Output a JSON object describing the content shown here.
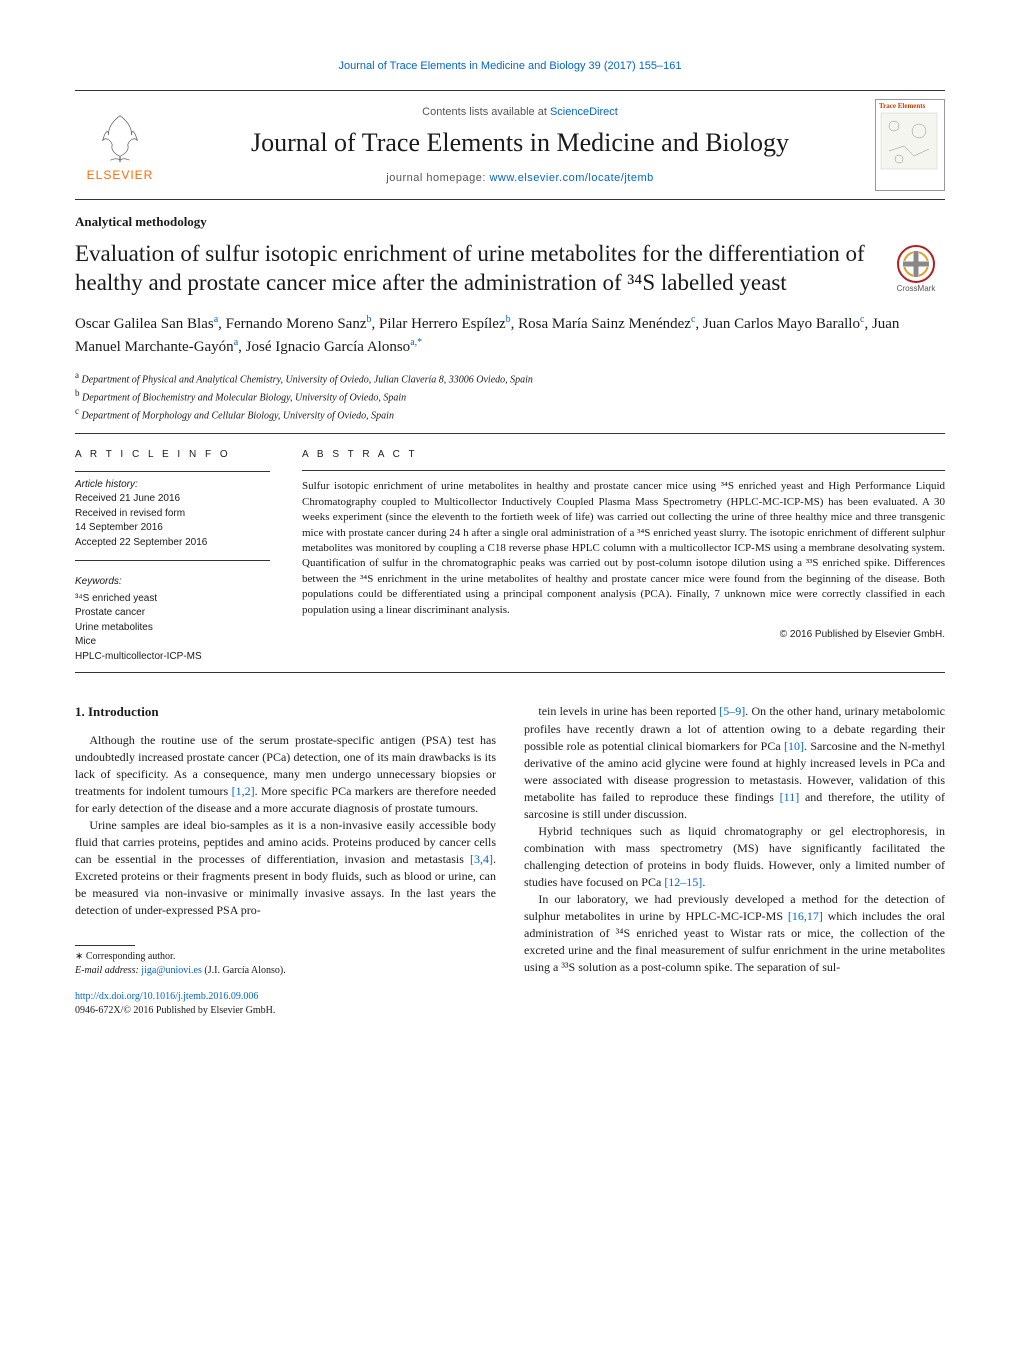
{
  "top_link": "Journal of Trace Elements in Medicine and Biology 39 (2017) 155–161",
  "header": {
    "sd_prefix": "Contents lists available at ",
    "sd_link": "ScienceDirect",
    "journal": "Journal of Trace Elements in Medicine and Biology",
    "home_prefix": "journal homepage: ",
    "home_link": "www.elsevier.com/locate/jtemb",
    "elsevier_word": "ELSEVIER",
    "cover_title": "Trace Elements"
  },
  "section_tag": "Analytical methodology",
  "title": "Evaluation of sulfur isotopic enrichment of urine metabolites for the differentiation of healthy and prostate cancer mice after the administration of ³⁴S labelled yeast",
  "crossmark": "CrossMark",
  "authors_html": "Oscar Galilea San Blas|a|, Fernando Moreno Sanz|b|, Pilar Herrero Espílez|b|, Rosa María Sainz Menéndez|c|, Juan Carlos Mayo Barallo|c|, Juan Manuel Marchante-Gayón|a|, José Ignacio García Alonso|a,*|",
  "affiliations": [
    {
      "sup": "a",
      "text": "Department of Physical and Analytical Chemistry, University of Oviedo, Julian Clavería 8, 33006 Oviedo, Spain"
    },
    {
      "sup": "b",
      "text": "Department of Biochemistry and Molecular Biology, University of Oviedo, Spain"
    },
    {
      "sup": "c",
      "text": "Department of Morphology and Cellular Biology, University of Oviedo, Spain"
    }
  ],
  "info": {
    "heading": "A R T I C L E   I N F O",
    "history_label": "Article history:",
    "received": "Received 21 June 2016",
    "revised1": "Received in revised form",
    "revised2": "14 September 2016",
    "accepted": "Accepted 22 September 2016",
    "kw_head": "Keywords:",
    "keywords": [
      "³⁴S enriched yeast",
      "Prostate cancer",
      "Urine metabolites",
      "Mice",
      "HPLC-multicollector-ICP-MS"
    ]
  },
  "abstract": {
    "heading": "A B S T R A C T",
    "text": "Sulfur isotopic enrichment of urine metabolites in healthy and prostate cancer mice using ³⁴S enriched yeast and High Performance Liquid Chromatography coupled to Multicollector Inductively Coupled Plasma Mass Spectrometry (HPLC-MC-ICP-MS) has been evaluated. A 30 weeks experiment (since the eleventh to the fortieth week of life) was carried out collecting the urine of three healthy mice and three transgenic mice with prostate cancer during 24 h after a single oral administration of a ³⁴S enriched yeast slurry. The isotopic enrichment of different sulphur metabolites was monitored by coupling a C18 reverse phase HPLC column with a multicollector ICP-MS using a membrane desolvating system. Quantification of sulfur in the chromatographic peaks was carried out by post-column isotope dilution using a ³³S enriched spike. Differences between the ³⁴S enrichment in the urine metabolites of healthy and prostate cancer mice were found from the beginning of the disease. Both populations could be differentiated using a principal component analysis (PCA). Finally, 7 unknown mice were correctly classified in each population using a linear discriminant analysis.",
    "copyright": "© 2016 Published by Elsevier GmbH."
  },
  "intro": {
    "heading": "1. Introduction",
    "p1": "Although the routine use of the serum prostate-specific antigen (PSA) test has undoubtedly increased prostate cancer (PCa) detection, one of its main drawbacks is its lack of specificity. As a consequence, many men undergo unnecessary biopsies or treatments for indolent tumours [1,2]. More specific PCa markers are therefore needed for early detection of the disease and a more accurate diagnosis of prostate tumours.",
    "p2": "Urine samples are ideal bio-samples as it is a non-invasive easily accessible body fluid that carries proteins, peptides and amino acids. Proteins produced by cancer cells can be essential in the processes of differentiation, invasion and metastasis [3,4]. Excreted proteins or their fragments present in body fluids, such as blood or urine, can be measured via non-invasive or minimally invasive assays. In the last years the detection of under-expressed PSA pro-",
    "p3": "tein levels in urine has been reported [5–9]. On the other hand, urinary metabolomic profiles have recently drawn a lot of attention owing to a debate regarding their possible role as potential clinical biomarkers for PCa [10]. Sarcosine and the N-methyl derivative of the amino acid glycine were found at highly increased levels in PCa and were associated with disease progression to metastasis. However, validation of this metabolite has failed to reproduce these findings [11] and therefore, the utility of sarcosine is still under discussion.",
    "p4": "Hybrid techniques such as liquid chromatography or gel electrophoresis, in combination with mass spectrometry (MS) have significantly facilitated the challenging detection of proteins in body fluids. However, only a limited number of studies have focused on PCa [12–15].",
    "p5": "In our laboratory, we had previously developed a method for the detection of sulphur metabolites in urine by HPLC-MC-ICP-MS [16,17] which includes the oral administration of ³⁴S enriched yeast to Wistar rats or mice, the collection of the excreted urine and the final measurement of sulfur enrichment in the urine metabolites using a ³³S solution as a post-column spike. The separation of sul-"
  },
  "footer": {
    "corr": "∗ Corresponding author.",
    "email_label": "E-mail address: ",
    "email": "jiga@uniovi.es",
    "email_paren": " (J.I. García Alonso).",
    "doi": "http://dx.doi.org/10.1016/j.jtemb.2016.09.006",
    "issn": "0946-672X/© 2016 Published by Elsevier GmbH."
  },
  "colors": {
    "link": "#0066cc",
    "elsevier_orange": "#ff6b00",
    "text": "#1a1a1a",
    "rule": "#333333"
  }
}
